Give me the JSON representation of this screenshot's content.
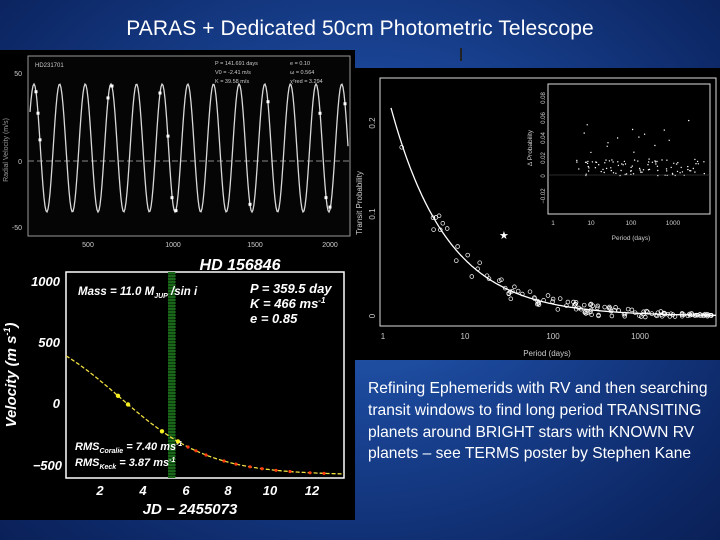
{
  "slide": {
    "title": "PARAS + Dedicated 50cm Photometric Telescope",
    "caption": "Refining Ephemerids with RV and then searching transit windows to find long period TRANSITING planets around BRIGHT stars with KNOWN RV planets – see TERMS poster by Stephen Kane"
  },
  "top_plot": {
    "star_id": "HD231701",
    "stats": [
      "P = 141.691 days",
      "e = 0.10",
      "V0 = -2.41 m/s",
      "ω = 0.564",
      "K = 39.58 m/s",
      "χ²red = 3.294"
    ],
    "x_ticks": [
      "500",
      "1000",
      "1500",
      "2000"
    ],
    "y_ticks": [
      "50",
      "0",
      "-50"
    ],
    "ylabel": "Radial Velocity (m/s)"
  },
  "rv_plot": {
    "star": "HD 156846",
    "mass_text": "Mass = 11.0 M",
    "mass_sub": "JUP",
    "mass_tail": " /sin i",
    "params": [
      "P = 359.5 day",
      "K = 466 ms",
      "e = 0.85"
    ],
    "param_sup": "-1",
    "rms1": "RMS",
    "rms1_sub": "Coralie",
    "rms1_val": " = 7.40 ms",
    "rms2": "RMS",
    "rms2_sub": "Keck",
    "rms2_val": " = 3.87 ms",
    "rms_sup": "-1",
    "ylabel": "Velocity (m s",
    "ylabel_sup": "-1",
    "ylabel_tail": ")",
    "xlabel": "JD − 2455073",
    "y_ticks": [
      "1000",
      "500",
      "0",
      "−500"
    ],
    "x_ticks": [
      "2",
      "4",
      "6",
      "8",
      "10",
      "12"
    ]
  },
  "transit_plot": {
    "ylabel": "Transit Probability",
    "xlabel": "Period (days)",
    "y_ticks": [
      "0.2",
      "0.1",
      "0"
    ],
    "x_ticks": [
      "1",
      "10",
      "100",
      "1000"
    ],
    "inset": {
      "ylabel": "Δ Probability",
      "xlabel": "Period (days)",
      "y_ticks": [
        "0.08",
        "0.06",
        "0.04",
        "0.02",
        "0",
        "−0.02"
      ],
      "x_ticks": [
        "1",
        "10",
        "100",
        "1000"
      ]
    }
  },
  "colors": {
    "background": "#1a4596",
    "curve": "#ffffff",
    "rv_curve": "#f0e040",
    "rv_points_red": "#ff3a10",
    "rv_points_yellow": "#f6f020",
    "window": "#2ea82e"
  }
}
